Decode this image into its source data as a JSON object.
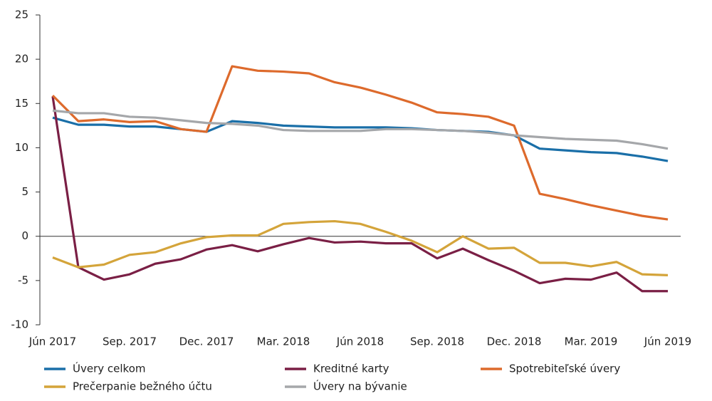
{
  "chart_data": {
    "type": "line",
    "categories": [
      "Jún 2017",
      null,
      null,
      "Sep. 2017",
      null,
      null,
      "Dec. 2017",
      null,
      null,
      "Mar. 2018",
      null,
      null,
      "Jún 2018",
      null,
      null,
      "Sep. 2018",
      null,
      null,
      "Dec. 2018",
      null,
      null,
      "Mar. 2019",
      null,
      null,
      "Jún 2019"
    ],
    "series": [
      {
        "name": "Úvery celkom",
        "color": "#1a6fa8",
        "values": [
          13.4,
          12.6,
          12.6,
          12.4,
          12.4,
          12.1,
          11.8,
          13.0,
          12.8,
          12.5,
          12.4,
          12.3,
          12.3,
          12.3,
          12.2,
          12.0,
          11.9,
          11.8,
          11.4,
          9.9,
          9.7,
          9.5,
          9.4,
          9.0,
          8.5
        ]
      },
      {
        "name": "Kreditné karty",
        "color": "#7a1f45",
        "values": [
          15.8,
          -3.5,
          -4.9,
          -4.3,
          -3.1,
          -2.6,
          -1.5,
          -1.0,
          -1.7,
          -0.9,
          -0.2,
          -0.7,
          -0.6,
          -0.8,
          -0.8,
          -2.5,
          -1.4,
          -2.7,
          -3.9,
          -5.3,
          -4.8,
          -4.9,
          -4.1,
          -6.2,
          -6.2
        ]
      },
      {
        "name": "Spotrebiteľské úvery",
        "color": "#dd6a2c",
        "values": [
          15.9,
          13.0,
          13.2,
          12.9,
          13.0,
          12.1,
          11.8,
          19.2,
          18.7,
          18.6,
          18.4,
          17.4,
          16.8,
          16.0,
          15.1,
          14.0,
          13.8,
          13.5,
          12.5,
          4.8,
          4.2,
          3.5,
          2.9,
          2.3,
          1.9
        ]
      },
      {
        "name": "Prečerpanie bežného účtu",
        "color": "#d4a43a",
        "values": [
          -2.4,
          -3.5,
          -3.2,
          -2.1,
          -1.8,
          -0.8,
          -0.1,
          0.1,
          0.1,
          1.4,
          1.6,
          1.7,
          1.4,
          0.5,
          -0.5,
          -1.8,
          0.0,
          -1.4,
          -1.3,
          -3.0,
          -3.0,
          -3.4,
          -2.9,
          -4.3,
          -4.4
        ]
      },
      {
        "name": "Úvery na bývanie",
        "color": "#a5a7aa",
        "values": [
          14.2,
          13.9,
          13.9,
          13.5,
          13.4,
          13.1,
          12.8,
          12.7,
          12.5,
          12.0,
          11.9,
          11.9,
          11.9,
          12.1,
          12.1,
          12.0,
          11.9,
          11.7,
          11.4,
          11.2,
          11.0,
          10.9,
          10.8,
          10.4,
          9.9
        ]
      }
    ],
    "ylim": [
      -10,
      25
    ],
    "yticks": [
      -10,
      -5,
      0,
      5,
      10,
      15,
      20,
      25
    ]
  }
}
